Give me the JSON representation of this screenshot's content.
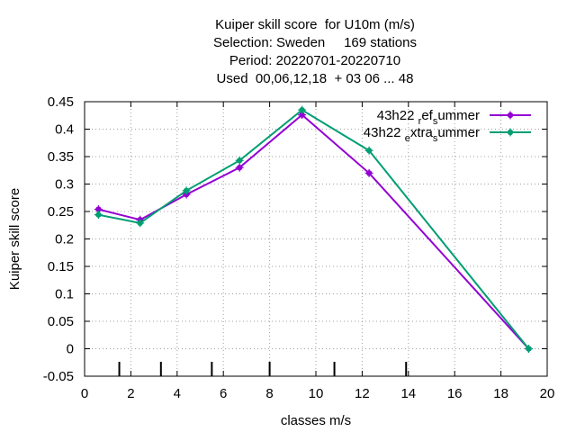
{
  "chart_data": {
    "type": "line",
    "title_lines": [
      "Kuiper skill score  for U10m (m/s)",
      "Selection: Sweden     169 stations",
      "Period: 20220701-20220710",
      "Used  00,06,12,18  + 03 06 ... 48"
    ],
    "xlabel": "classes m/s",
    "ylabel": "Kuiper skill score",
    "xlim": [
      0,
      20
    ],
    "ylim": [
      -0.05,
      0.45
    ],
    "xticks": [
      "0",
      "2",
      "4",
      "6",
      "8",
      "10",
      "12",
      "14",
      "16",
      "18",
      "20"
    ],
    "yticks": [
      "-0.05",
      "0",
      "0.05",
      "0.1",
      "0.15",
      "0.2",
      "0.25",
      "0.3",
      "0.35",
      "0.4",
      "0.45"
    ],
    "grid": true,
    "legend_position": "top-right",
    "class_boundaries": [
      1.5,
      3.3,
      5.5,
      8.0,
      10.8,
      13.9
    ],
    "series": [
      {
        "name_parts": [
          {
            "text": "43h22 ",
            "shift": "base"
          },
          {
            "text": "r",
            "shift": "sub"
          },
          {
            "text": "ef",
            "shift": "base"
          },
          {
            "text": "s",
            "shift": "sub"
          },
          {
            "text": "ummer",
            "shift": "base"
          }
        ],
        "color": "#9400d3",
        "x": [
          0.6,
          2.4,
          4.4,
          6.7,
          9.4,
          12.3,
          19.2
        ],
        "values": [
          0.254,
          0.235,
          0.281,
          0.33,
          0.426,
          0.32,
          0.0
        ]
      },
      {
        "name_parts": [
          {
            "text": "43h22 ",
            "shift": "base"
          },
          {
            "text": "e",
            "shift": "sub"
          },
          {
            "text": "xtra",
            "shift": "base"
          },
          {
            "text": "s",
            "shift": "sub"
          },
          {
            "text": "ummer",
            "shift": "base"
          }
        ],
        "color": "#009e73",
        "x": [
          0.6,
          2.4,
          4.4,
          6.7,
          9.4,
          12.3,
          19.2
        ],
        "values": [
          0.244,
          0.229,
          0.288,
          0.343,
          0.435,
          0.361,
          0.0
        ]
      }
    ]
  }
}
